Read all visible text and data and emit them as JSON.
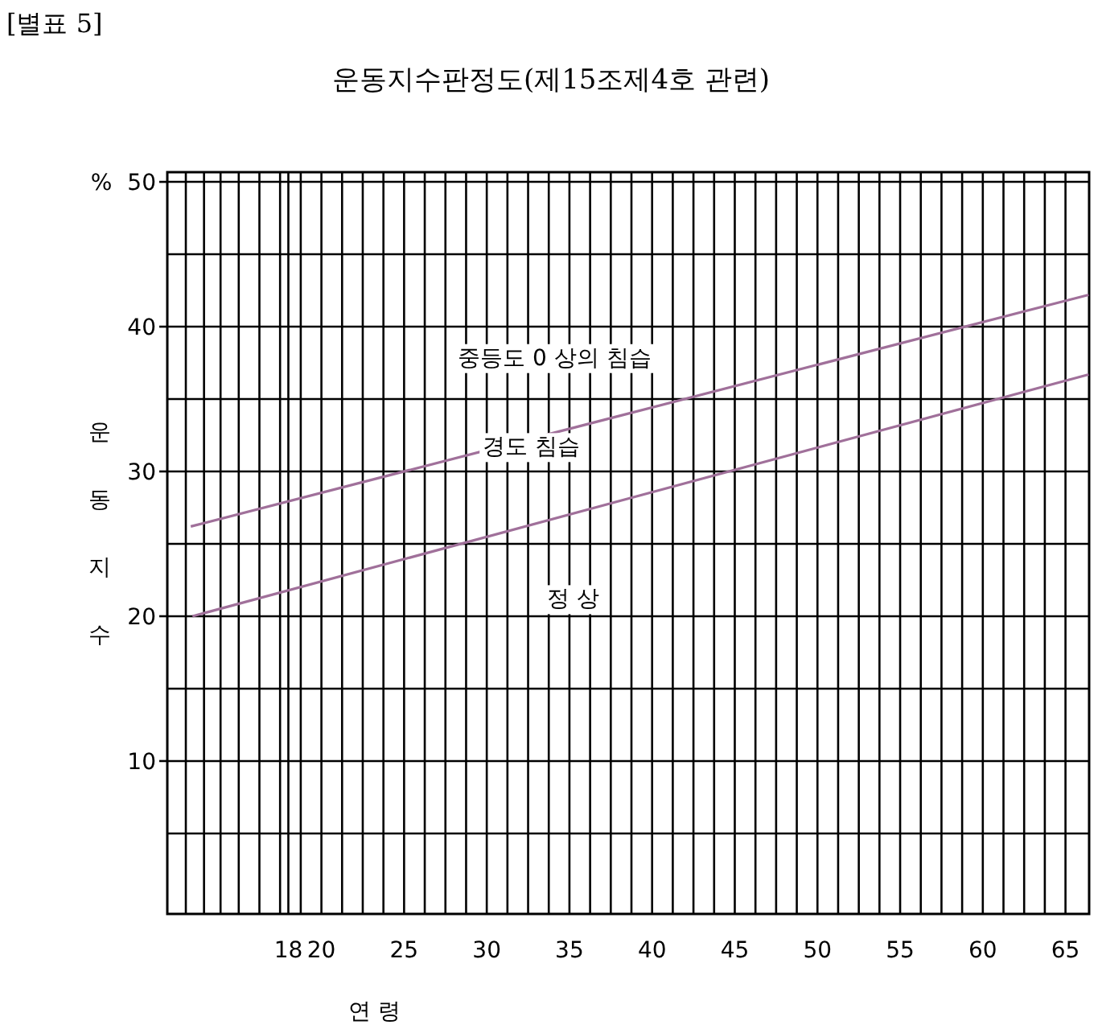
{
  "chart_data": {
    "type": "line",
    "title": "운동지수판정도(제15조제4호 관련)",
    "xlabel": "연 령",
    "ylabel": "운동지수",
    "annotations": [
      "[별표 5]",
      "%",
      "중등도 0 상의 침습",
      "경도 침습",
      "정      상"
    ],
    "series": [
      {
        "color": "#a0709a",
        "x": [
          12.1,
          66.4
        ],
        "values": [
          26.2,
          42.2
        ]
      },
      {
        "color": "#a0709a",
        "x": [
          12.2,
          66.4
        ],
        "values": [
          20.0,
          36.7
        ]
      }
    ],
    "xlim": [
      10.68,
      66.43
    ],
    "ylim": [
      -0.56,
      50.67
    ],
    "xticks": [
      {
        "value": 11.8,
        "label": null
      },
      {
        "value": 12.9,
        "label": null
      },
      {
        "value": 13.9,
        "label": null
      },
      {
        "value": 15,
        "label": null
      },
      18,
      {
        "value": 16.25,
        "label": null
      },
      {
        "value": 17.5,
        "label": null
      },
      {
        "value": 18.75,
        "label": null
      },
      20,
      {
        "value": 21.25,
        "label": null
      },
      {
        "value": 22.5,
        "label": null
      },
      {
        "value": 23.75,
        "label": null
      },
      25,
      {
        "value": 26.25,
        "label": null
      },
      {
        "value": 27.5,
        "label": null
      },
      {
        "value": 28.75,
        "label": null
      },
      30,
      {
        "value": 31.25,
        "label": null
      },
      {
        "value": 32.5,
        "label": null
      },
      {
        "value": 33.75,
        "label": null
      },
      35,
      {
        "value": 36.25,
        "label": null
      },
      {
        "value": 37.5,
        "label": null
      },
      {
        "value": 38.75,
        "label": null
      },
      40,
      {
        "value": 41.25,
        "label": null
      },
      {
        "value": 42.5,
        "label": null
      },
      {
        "value": 43.75,
        "label": null
      },
      45,
      {
        "value": 46.25,
        "label": null
      },
      {
        "value": 47.5,
        "label": null
      },
      {
        "value": 48.75,
        "label": null
      },
      50,
      {
        "value": 51.25,
        "label": null
      },
      {
        "value": 52.5,
        "label": null
      },
      {
        "value": 53.75,
        "label": null
      },
      55,
      {
        "value": 56.25,
        "label": null
      },
      {
        "value": 57.5,
        "label": null
      },
      {
        "value": 58.75,
        "label": null
      },
      60,
      {
        "value": 61.25,
        "label": null
      },
      {
        "value": 62.5,
        "label": null
      },
      {
        "value": 63.75,
        "label": null
      },
      65
    ],
    "yticks": [
      {
        "value": 5,
        "label": null
      },
      10,
      {
        "value": 15,
        "label": null
      },
      20,
      {
        "value": 25,
        "label": null
      },
      30,
      {
        "value": 35,
        "label": null
      },
      40,
      {
        "value": 45,
        "label": null
      },
      50
    ],
    "grid": true
  }
}
